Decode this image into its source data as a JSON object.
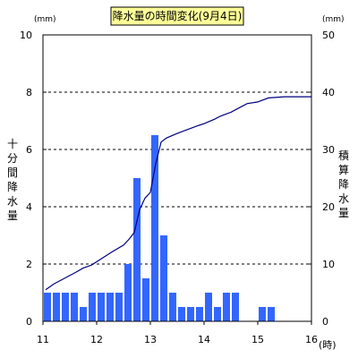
{
  "chart_data": {
    "type": "bar",
    "title": "降水量の時間変化(9月4日)",
    "left_axis": {
      "unit": "(mm)",
      "label": "十分間降水量",
      "ylim": [
        0,
        10
      ],
      "ticks": [
        "0",
        "2",
        "4",
        "6",
        "8",
        "10"
      ]
    },
    "right_axis": {
      "unit": "(mm)",
      "label": "積算降水量",
      "ylim": [
        0,
        50
      ],
      "ticks": [
        "0",
        "10",
        "20",
        "30",
        "40",
        "50"
      ]
    },
    "x_axis": {
      "unit": "(時)",
      "xlim": [
        11,
        16
      ],
      "ticks": [
        "11",
        "12",
        "13",
        "14",
        "15",
        "16"
      ]
    },
    "grid": "horizontal dashed at left-axis 2, 4, 6, 8",
    "bar_color": "#3366ff",
    "line_color": "#000080",
    "series": [
      {
        "type": "bar",
        "axis": "left",
        "x": [
          11.0,
          11.167,
          11.333,
          11.5,
          11.667,
          11.833,
          12.0,
          12.167,
          12.333,
          12.5,
          12.667,
          12.833,
          13.0,
          13.167,
          13.333,
          13.5,
          13.667,
          13.833,
          14.0,
          14.167,
          14.333,
          14.5,
          14.667,
          14.833,
          15.0,
          15.167,
          15.333,
          15.5,
          15.667,
          15.833
        ],
        "values": [
          1,
          1,
          1,
          1,
          0.5,
          1,
          1,
          1,
          1,
          2,
          5,
          1.5,
          6.5,
          3,
          1,
          0.5,
          0.5,
          0.5,
          1,
          0.5,
          1,
          1,
          0,
          0,
          0.5,
          0.5,
          0,
          0,
          0,
          0
        ]
      },
      {
        "type": "line",
        "axis": "right",
        "x": [
          11.05,
          11.2,
          11.4,
          11.6,
          11.75,
          11.9,
          12.1,
          12.3,
          12.5,
          12.6,
          12.7,
          12.8,
          12.9,
          13.0,
          13.1,
          13.2,
          13.3,
          13.5,
          13.7,
          13.9,
          14.0,
          14.2,
          14.3,
          14.5,
          14.6,
          14.8,
          15.0,
          15.2,
          15.5,
          15.8,
          16.0
        ],
        "values": [
          5.5,
          6.5,
          7.5,
          8.5,
          9.3,
          9.8,
          11,
          12.2,
          13.3,
          14.3,
          15.5,
          19.5,
          21.5,
          22.5,
          27.5,
          31.3,
          32,
          32.8,
          33.5,
          34.2,
          34.5,
          35.3,
          35.8,
          36.5,
          37,
          38,
          38.3,
          39,
          39.2,
          39.2,
          39.2
        ]
      }
    ]
  }
}
